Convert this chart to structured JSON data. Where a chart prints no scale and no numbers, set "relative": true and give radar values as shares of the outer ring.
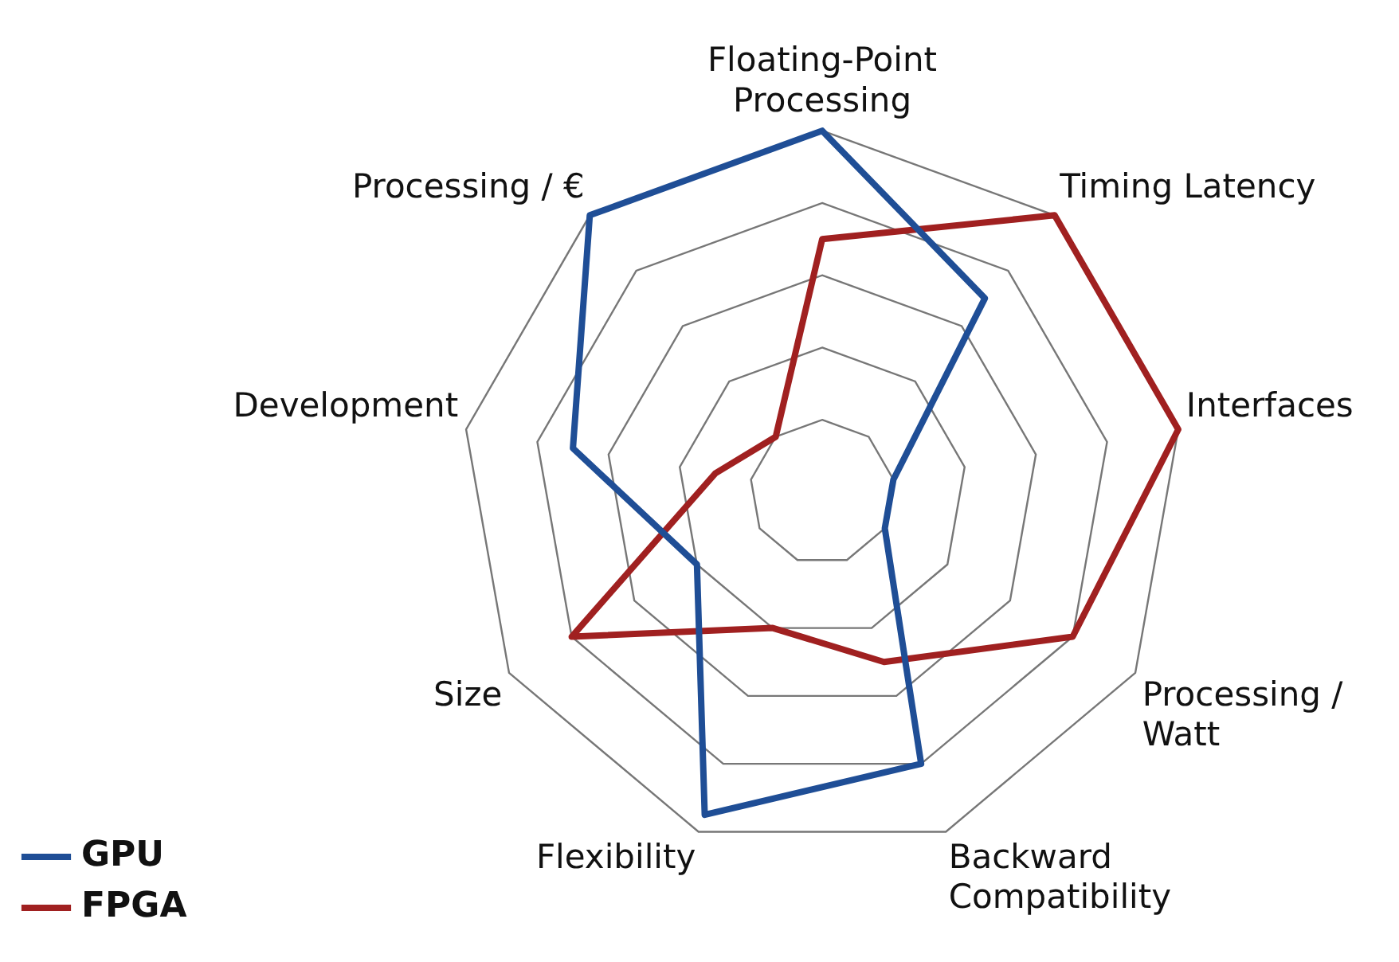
{
  "chart_data": {
    "type": "radar",
    "relative": true,
    "categories": [
      "Floating-Point Processing",
      "Timing Latency",
      "Interfaces",
      "Processing / Watt",
      "Backward Compatibility",
      "Flexibility",
      "Size",
      "Development",
      "Processing / €"
    ],
    "series": [
      {
        "name": "GPU",
        "color": "#1f4e96",
        "values": [
          1.0,
          0.7,
          0.2,
          0.2,
          0.8,
          0.95,
          0.4,
          0.7,
          1.0
        ]
      },
      {
        "name": "FPGA",
        "color": "#a02020",
        "values": [
          0.7,
          1.0,
          1.0,
          0.8,
          0.5,
          0.4,
          0.8,
          0.3,
          0.2
        ]
      }
    ],
    "legend": "bottom left",
    "marker": "none",
    "grid": true
  }
}
